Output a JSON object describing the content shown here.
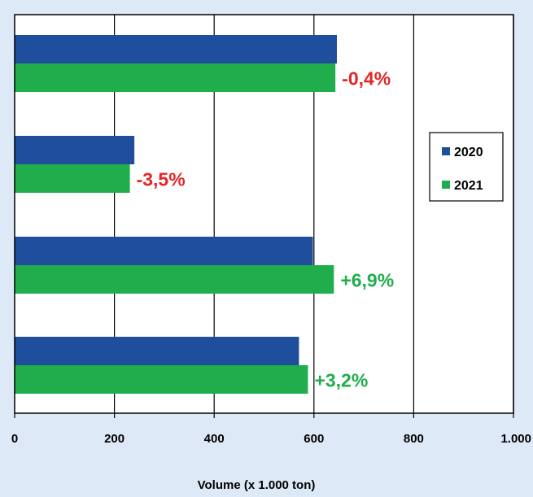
{
  "chart_data": {
    "type": "bar",
    "orientation": "horizontal",
    "categories": [
      "",
      "",
      "",
      ""
    ],
    "series": [
      {
        "name": "2020",
        "color": "#1f4e9c",
        "values": [
          646,
          240,
          598,
          570
        ]
      },
      {
        "name": "2021",
        "color": "#1fae4b",
        "values": [
          643,
          231,
          640,
          588
        ]
      }
    ],
    "bar_labels": [
      "-0,4%",
      "-3,5%",
      "+6,9%",
      "+3,2%"
    ],
    "bar_label_colors": [
      "#e32626",
      "#e32626",
      "#1fae4b",
      "#1fae4b"
    ],
    "xlim": [
      0,
      1000
    ],
    "xticks": [
      0,
      200,
      400,
      600,
      800,
      1000
    ],
    "xtick_labels": [
      "0",
      "200",
      "400",
      "600",
      "800",
      "1.000"
    ],
    "xlabel": "Volume (x 1.000 ton)",
    "ylabel": "",
    "grid": "vertical",
    "legend": {
      "position": "right",
      "entries": [
        "2020",
        "2021"
      ]
    },
    "background": "#dde9f7",
    "plot_background": "#ffffff"
  }
}
